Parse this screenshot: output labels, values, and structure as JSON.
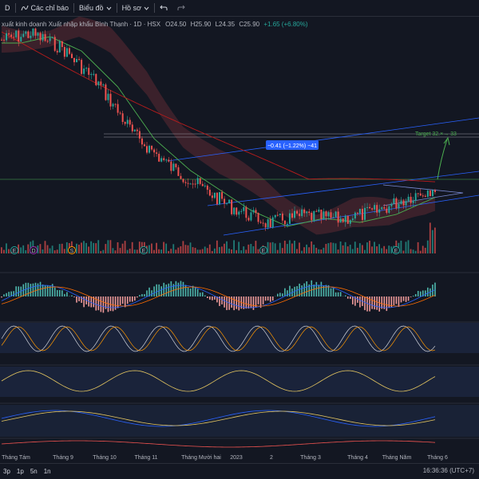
{
  "toolbar": {
    "interval": "D",
    "indicators_label": "Các chỉ báo",
    "chart_type_label": "Biểu đồ",
    "profile_label": "Hồ sơ"
  },
  "legend": {
    "symbol_title": "xuất kinh doanh Xuất nhập khẩu Bình Thạnh · 1D · HSX",
    "open": "O24.50",
    "high": "H25.90",
    "low": "L24.35",
    "close": "C25.90",
    "change": "+1.65 (+6.80%)"
  },
  "annotations": {
    "range_measure": "−0.41 (−1.22%) −41",
    "target": "Target 32.×→ 33"
  },
  "xaxis": {
    "labels": [
      "Tháng Tám",
      "Tháng 9",
      "Tháng 10",
      "Tháng 11",
      "Tháng Mười hai",
      "2023",
      "2",
      "Tháng 3",
      "Tháng 4",
      "Tháng Năm",
      "Tháng 6"
    ]
  },
  "event_markers": [
    "E",
    "D",
    "S",
    "E",
    "E",
    "E"
  ],
  "bottom": {
    "ranges": [
      "3p",
      "1p",
      "5n",
      "1n"
    ],
    "clock": "16:36:36 (UTC+7)"
  },
  "colors": {
    "up": "#26a69a",
    "down": "#ef5350",
    "background": "#131722",
    "cloud_bear": "#5d2a33",
    "cloud_bull": "#1f3d3a",
    "accent": "#2962ff"
  },
  "icons": [
    "undo-icon",
    "redo-icon",
    "chevron-down-icon"
  ]
}
